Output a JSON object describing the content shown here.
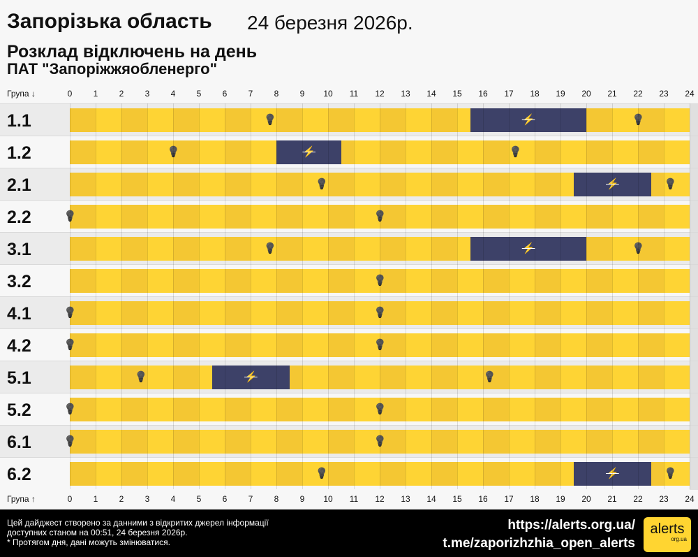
{
  "header": {
    "region": "Запорізька область",
    "date": "24 березня 2026р.",
    "subtitle": "Розклад відключень на день",
    "company": "ПАТ \"Запоріжжяобленерго\""
  },
  "axis": {
    "top_label": "Група ↓",
    "bottom_label": "Група ↑",
    "hours": [
      "0",
      "1",
      "2",
      "3",
      "4",
      "5",
      "6",
      "7",
      "8",
      "9",
      "10",
      "11",
      "12",
      "13",
      "14",
      "15",
      "16",
      "17",
      "18",
      "19",
      "20",
      "21",
      "22",
      "23",
      "24"
    ]
  },
  "colors": {
    "on_even": "#f4c733",
    "on_odd": "#fed434",
    "off": "#3d4168"
  },
  "groups": [
    {
      "name": "1.1",
      "outages": [
        [
          15.5,
          20
        ]
      ],
      "bulbs": [
        7.75,
        22
      ]
    },
    {
      "name": "1.2",
      "outages": [
        [
          8,
          10.5
        ]
      ],
      "bulbs": [
        4,
        17.25
      ]
    },
    {
      "name": "2.1",
      "outages": [
        [
          19.5,
          22.5
        ]
      ],
      "bulbs": [
        9.75,
        23.25
      ]
    },
    {
      "name": "2.2",
      "outages": [],
      "bulbs": [
        0,
        12
      ]
    },
    {
      "name": "3.1",
      "outages": [
        [
          15.5,
          20
        ]
      ],
      "bulbs": [
        7.75,
        22
      ]
    },
    {
      "name": "3.2",
      "outages": [],
      "bulbs": [
        12
      ]
    },
    {
      "name": "4.1",
      "outages": [],
      "bulbs": [
        0,
        12
      ]
    },
    {
      "name": "4.2",
      "outages": [],
      "bulbs": [
        0,
        12
      ]
    },
    {
      "name": "5.1",
      "outages": [
        [
          5.5,
          8.5
        ]
      ],
      "bulbs": [
        2.75,
        16.25
      ]
    },
    {
      "name": "5.2",
      "outages": [],
      "bulbs": [
        0,
        12
      ]
    },
    {
      "name": "6.1",
      "outages": [],
      "bulbs": [
        0,
        12
      ]
    },
    {
      "name": "6.2",
      "outages": [
        [
          19.5,
          22.5
        ]
      ],
      "bulbs": [
        9.75,
        23.25
      ]
    }
  ],
  "footer": {
    "note_line1": "Цей дайджест створено за данними з відкритих джерел інформації",
    "note_line2": "доступних станом на 00:51, 24 березня 2026р.",
    "note_line3": "* Протягом дня, дані можуть змінюватися.",
    "link1": "https://alerts.org.ua/",
    "link2": "t.me/zaporizhzhia_open_alerts",
    "logo_text": "alerts",
    "logo_sub": "org.ua"
  }
}
